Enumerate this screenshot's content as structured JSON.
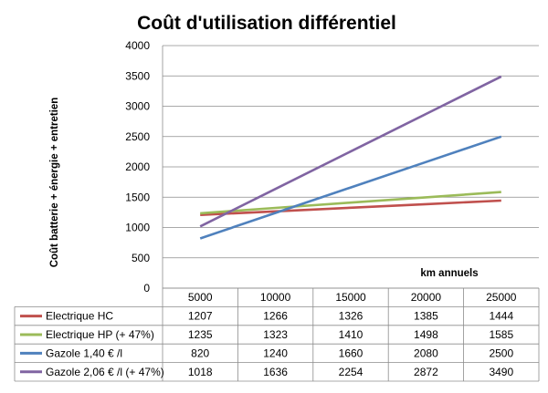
{
  "chart_data": {
    "type": "line",
    "title": "Coût d'utilisation différentiel",
    "xlabel": "km annuels",
    "ylabel": "Coût batterie + énergie + entretien",
    "categories": [
      "5000",
      "10000",
      "15000",
      "20000",
      "25000"
    ],
    "ylim": [
      0,
      4000
    ],
    "yticks": [
      "0",
      "500",
      "1000",
      "1500",
      "2000",
      "2500",
      "3000",
      "3500",
      "4000"
    ],
    "grid": true,
    "legend": "data table below chart",
    "series": [
      {
        "name": "Electrique HC",
        "color": "#c0504d",
        "values": [
          1207,
          1266,
          1326,
          1385,
          1444
        ]
      },
      {
        "name": "Electrique HP (+ 47%)",
        "color": "#9bbb59",
        "values": [
          1235,
          1323,
          1410,
          1498,
          1585
        ]
      },
      {
        "name": "Gazole 1,40 € /l",
        "color": "#4f81bd",
        "values": [
          820,
          1240,
          1660,
          2080,
          2500
        ]
      },
      {
        "name": "Gazole 2,06 € /l (+ 47%)",
        "color": "#8064a2",
        "values": [
          1018,
          1636,
          2254,
          2872,
          3490
        ]
      }
    ]
  }
}
